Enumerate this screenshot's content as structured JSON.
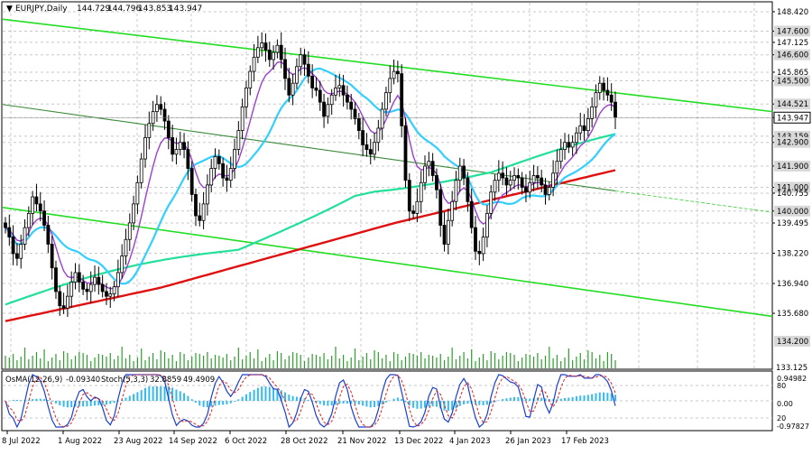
{
  "header": {
    "symbol": "EURJPY,Daily",
    "ohlc": [
      "144.729",
      "144.796",
      "143.853",
      "143.947"
    ]
  },
  "osc_header": {
    "osma_label": "OsMA(12,26,9)",
    "osma_value": "-0.09340",
    "stoch_label": "Stoch(5,3,3)",
    "stoch_k": "32.8859",
    "stoch_d": "49.4909"
  },
  "colors": {
    "candle": "#000000",
    "ema_fast": "#9c3fcf",
    "ema_mid": "#33cfff",
    "ema_slow": "#22e09a",
    "ema_long": "#e01010",
    "channel": "#22dd22",
    "volume": "#2e9e2e",
    "osma": "#33bbee",
    "stoch_main": "#1a3fcf",
    "stoch_signal": "#dd2222",
    "grid": "#c8c8c8"
  },
  "chart_data": [
    {
      "type": "candlestick",
      "title": "EURJPY,Daily",
      "x_labels": [
        "8 Jul 2022",
        "1 Aug 2022",
        "23 Aug 2022",
        "14 Sep 2022",
        "6 Oct 2022",
        "28 Oct 2022",
        "21 Nov 2022",
        "13 Dec 2022",
        "4 Jan 2023",
        "26 Jan 2023",
        "17 Feb 2023"
      ],
      "y_ticks": [
        148.42,
        147.6,
        147.125,
        146.6,
        145.865,
        145.5,
        144.521,
        143.947,
        143.159,
        142.9,
        141.9,
        141.0,
        140.755,
        140.0,
        139.495,
        138.22,
        136.94,
        135.68
      ],
      "y_tick_labels": [
        "148.420",
        "147.600",
        "147.125",
        "146.600",
        "145.865",
        "145.500",
        "144.521",
        "143.947",
        "143.159",
        "142.900",
        "141.900",
        "141.000",
        "140.755",
        "140.000",
        "139.495",
        "138.220",
        "136.940",
        "135.680"
      ],
      "ylim": [
        134.5,
        148.8
      ],
      "highlighted_levels": [
        147.6,
        146.6,
        145.5,
        144.521,
        143.947,
        143.159,
        142.9,
        141.9,
        141.0,
        140.0
      ],
      "last_price": 143.947,
      "closes": [
        139.3,
        138.9,
        138.2,
        138.0,
        138.6,
        139.3,
        139.9,
        140.6,
        140.3,
        140.0,
        139.4,
        138.6,
        137.6,
        136.6,
        136.0,
        135.9,
        136.4,
        137.0,
        137.4,
        137.0,
        136.7,
        136.6,
        136.9,
        137.2,
        136.9,
        136.6,
        136.4,
        136.5,
        136.8,
        137.4,
        138.1,
        138.8,
        139.5,
        140.3,
        141.2,
        142.2,
        143.1,
        143.7,
        144.2,
        144.5,
        144.3,
        143.8,
        143.1,
        142.4,
        142.6,
        142.9,
        142.6,
        141.8,
        140.7,
        139.8,
        139.6,
        140.3,
        141.1,
        141.8,
        142.3,
        142.0,
        141.4,
        141.3,
        141.8,
        142.6,
        143.4,
        144.4,
        145.2,
        145.9,
        146.5,
        146.9,
        147.1,
        146.8,
        146.4,
        146.7,
        147.0,
        146.4,
        145.6,
        144.9,
        145.4,
        146.1,
        146.6,
        146.2,
        145.7,
        145.2,
        145.1,
        144.6,
        144.0,
        144.5,
        144.9,
        145.2,
        145.3,
        144.9,
        144.6,
        144.3,
        143.9,
        143.4,
        142.8,
        142.6,
        142.4,
        142.9,
        143.5,
        144.3,
        145.0,
        145.6,
        145.9,
        145.8,
        143.6,
        141.3,
        140.0,
        139.9,
        140.4,
        141.2,
        141.9,
        142.1,
        141.5,
        140.9,
        139.4,
        138.6,
        139.6,
        140.4,
        141.3,
        141.9,
        141.4,
        140.4,
        139.3,
        138.3,
        138.2,
        138.9,
        139.9,
        140.8,
        141.3,
        141.6,
        141.4,
        141.1,
        141.3,
        141.5,
        141.4,
        141.0,
        140.8,
        141.2,
        141.5,
        141.4,
        141.1,
        140.7,
        141.0,
        141.6,
        142.1,
        142.6,
        142.9,
        142.7,
        142.9,
        143.3,
        143.6,
        143.4,
        143.9,
        144.4,
        145.0,
        145.4,
        145.1,
        144.9,
        144.6,
        143.95
      ],
      "ema_fast": [],
      "volume_label": "134.200",
      "series": [
        {
          "name": "",
          "role": "ema_fast",
          "color": "#9c3fcf"
        },
        {
          "name": "",
          "role": "ema_mid",
          "color": "#33cfff"
        },
        {
          "name": "",
          "role": "ema_slow",
          "color": "#22e09a"
        },
        {
          "name": "",
          "role": "ema_long",
          "color": "#e01010"
        }
      ]
    },
    {
      "type": "oscillator",
      "y_tick_labels": [
        "0.94982",
        "0.00",
        "-0.97827"
      ],
      "y_levels": [
        80,
        20
      ],
      "y_level_labels": [
        "80",
        "20"
      ]
    }
  ],
  "watermark_lower": "133.125"
}
